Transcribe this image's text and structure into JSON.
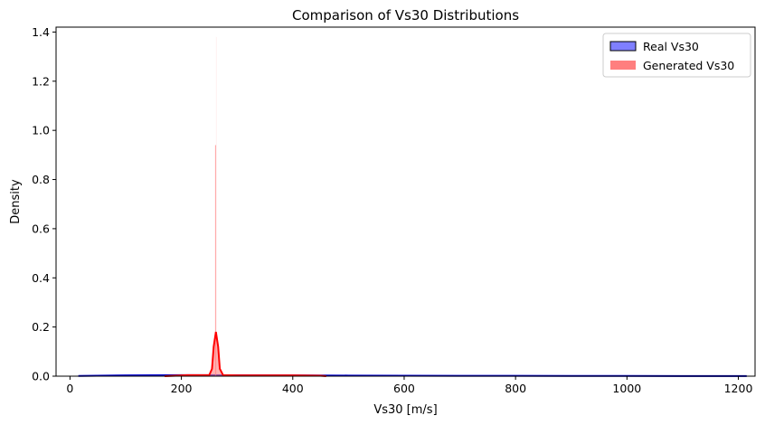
{
  "chart_data": {
    "type": "histogram",
    "title": "Comparison of Vs30 Distributions",
    "xlabel": "Vs30 [m/s]",
    "ylabel": "Density",
    "xlim": [
      -25,
      1230
    ],
    "ylim": [
      0,
      1.42
    ],
    "x_ticks": [
      0,
      200,
      400,
      600,
      800,
      1000,
      1200
    ],
    "y_ticks": [
      0.0,
      0.2,
      0.4,
      0.6,
      0.8,
      1.0,
      1.2,
      1.4
    ],
    "x_tick_labels": [
      "0",
      "200",
      "400",
      "600",
      "800",
      "1000",
      "1200"
    ],
    "y_tick_labels": [
      "0.0",
      "0.2",
      "0.4",
      "0.6",
      "0.8",
      "1.0",
      "1.2",
      "1.4"
    ],
    "grid": false,
    "legend_position": "top-right",
    "series": [
      {
        "name": "Real Vs30",
        "fill_color": "#7f7fff",
        "edge_color": "#000000",
        "line_color": "#0000cc",
        "kde": [
          [
            15,
            0.001
          ],
          [
            100,
            0.003
          ],
          [
            200,
            0.004
          ],
          [
            300,
            0.0035
          ],
          [
            400,
            0.003
          ],
          [
            500,
            0.0025
          ],
          [
            600,
            0.002
          ],
          [
            700,
            0.0016
          ],
          [
            800,
            0.0012
          ],
          [
            900,
            0.001
          ],
          [
            1000,
            0.0008
          ],
          [
            1100,
            0.0006
          ],
          [
            1215,
            0.0004
          ]
        ]
      },
      {
        "name": "Generated Vs30",
        "fill_color": "#ff7f7f",
        "line_color": "#ff0000",
        "bars": [
          {
            "x": 262.5,
            "height": 1.38
          },
          {
            "x": 261.0,
            "height": 0.94
          }
        ],
        "kde": [
          [
            170,
            0.0
          ],
          [
            190,
            0.002
          ],
          [
            210,
            0.004
          ],
          [
            230,
            0.004
          ],
          [
            250,
            0.004
          ],
          [
            255,
            0.03
          ],
          [
            258,
            0.12
          ],
          [
            262,
            0.18
          ],
          [
            266,
            0.12
          ],
          [
            269,
            0.03
          ],
          [
            275,
            0.004
          ],
          [
            300,
            0.003
          ],
          [
            350,
            0.003
          ],
          [
            400,
            0.003
          ],
          [
            450,
            0.002
          ],
          [
            460,
            0.0
          ]
        ]
      }
    ]
  }
}
